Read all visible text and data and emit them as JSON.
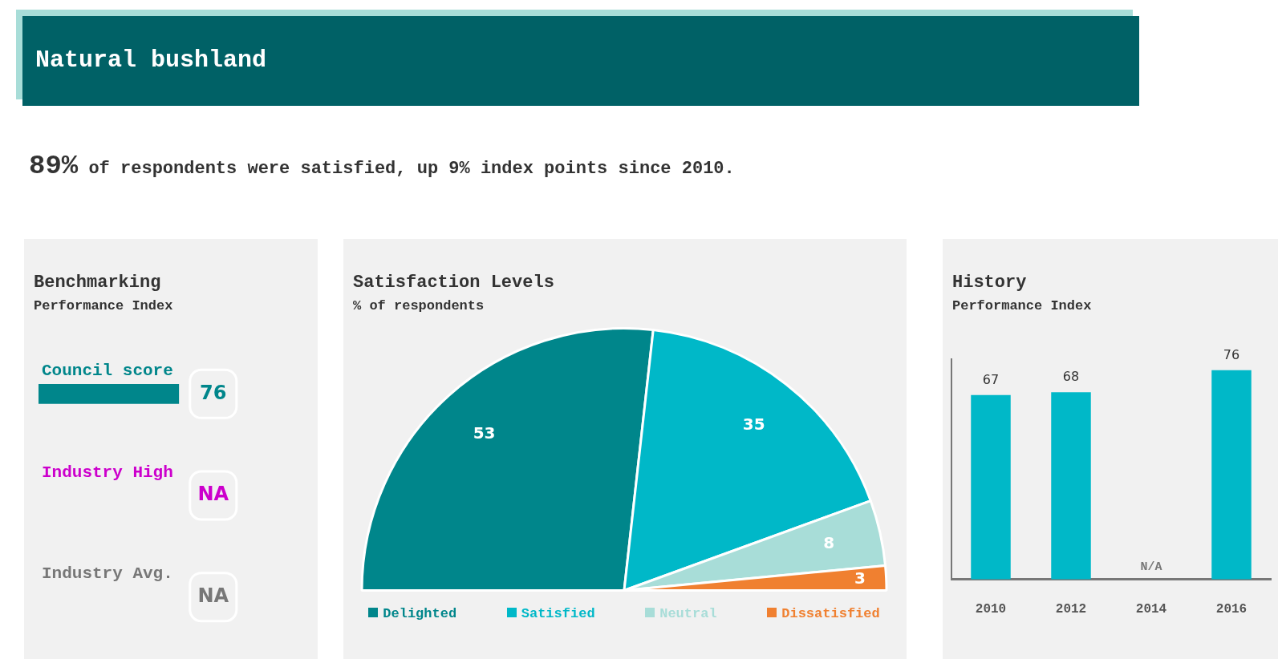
{
  "chart_data": [
    {
      "type": "other",
      "title": "Natural bushland",
      "subtitle": "89% of respondents were satisfied, up 9% index points since 2010."
    },
    {
      "type": "bar",
      "orientation": "horizontal",
      "title": "Benchmarking",
      "subtitle": "Performance Index",
      "categories": [
        "Council score",
        "Industry High",
        "Industry Avg."
      ],
      "values": [
        76,
        null,
        null
      ],
      "value_labels": [
        "76",
        "NA",
        "NA"
      ],
      "colors": [
        "#00868b",
        "#cc00cc",
        "#777777"
      ],
      "tick_labels": false,
      "grid": false
    },
    {
      "type": "pie",
      "title": "Satisfaction Levels",
      "subtitle": "% of respondents",
      "categories": [
        "Delighted",
        "Satisfied",
        "Neutral",
        "Dissatisfied"
      ],
      "values": [
        53,
        35,
        8,
        3
      ],
      "colors": [
        "#00868b",
        "#00b8c8",
        "#a8ddd8",
        "#f08030"
      ],
      "data_labels": true,
      "legend": "bottom"
    },
    {
      "type": "bar",
      "title": "History",
      "subtitle": "Performance Index",
      "categories": [
        "2010",
        "2012",
        "2014",
        "2016"
      ],
      "values": [
        67,
        68,
        null,
        76
      ],
      "color": "#00b8c8",
      "data_labels": true,
      "grid": false,
      "tick_labels": "x",
      "annotations": [
        "N/A"
      ]
    }
  ]
}
